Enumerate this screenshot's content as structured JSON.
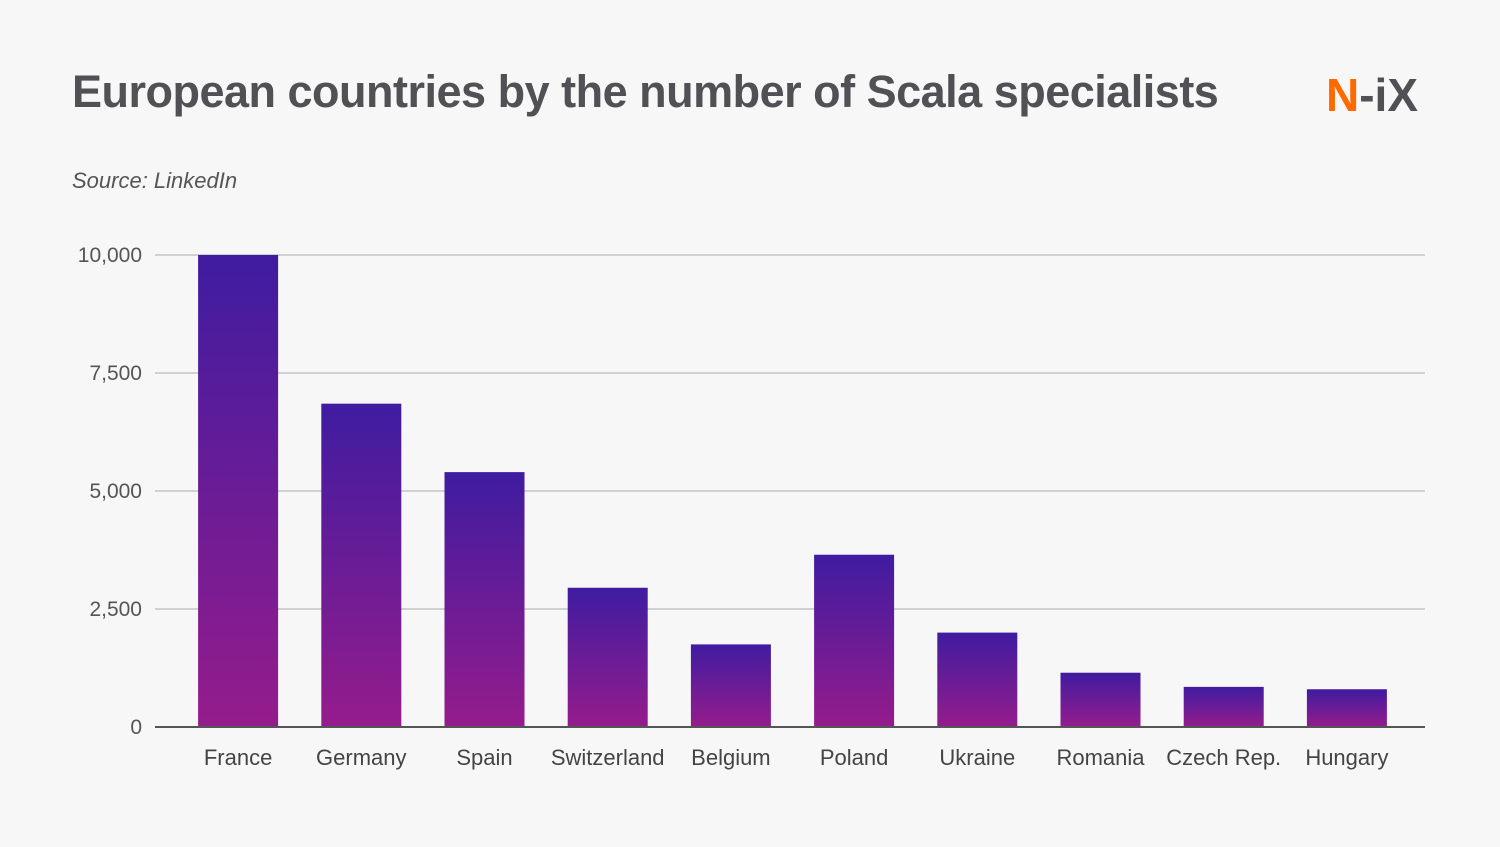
{
  "title": "European countries by the number of Scala specialists",
  "source": "Source: LinkedIn",
  "logo": {
    "first": "N",
    "rest": "-iX"
  },
  "colors": {
    "bar_top": "#3f1ca0",
    "bar_bottom": "#951c8c",
    "logo_accent": "#ff6a00",
    "text": "#505055"
  },
  "chart_data": {
    "type": "bar",
    "title": "European countries by the number of Scala specialists",
    "categories": [
      "France",
      "Germany",
      "Spain",
      "Switzerland",
      "Belgium",
      "Poland",
      "Ukraine",
      "Romania",
      "Czech Rep.",
      "Hungary"
    ],
    "values": [
      10000,
      6850,
      5400,
      2950,
      1750,
      3650,
      2000,
      1150,
      850,
      800
    ],
    "ylim": [
      0,
      10000
    ],
    "yticks": [
      "0",
      "2,500",
      "5,000",
      "7,500",
      "10,000"
    ],
    "ytick_values": [
      0,
      2500,
      5000,
      7500,
      10000
    ],
    "grid": true,
    "xlabel": "",
    "ylabel": ""
  }
}
